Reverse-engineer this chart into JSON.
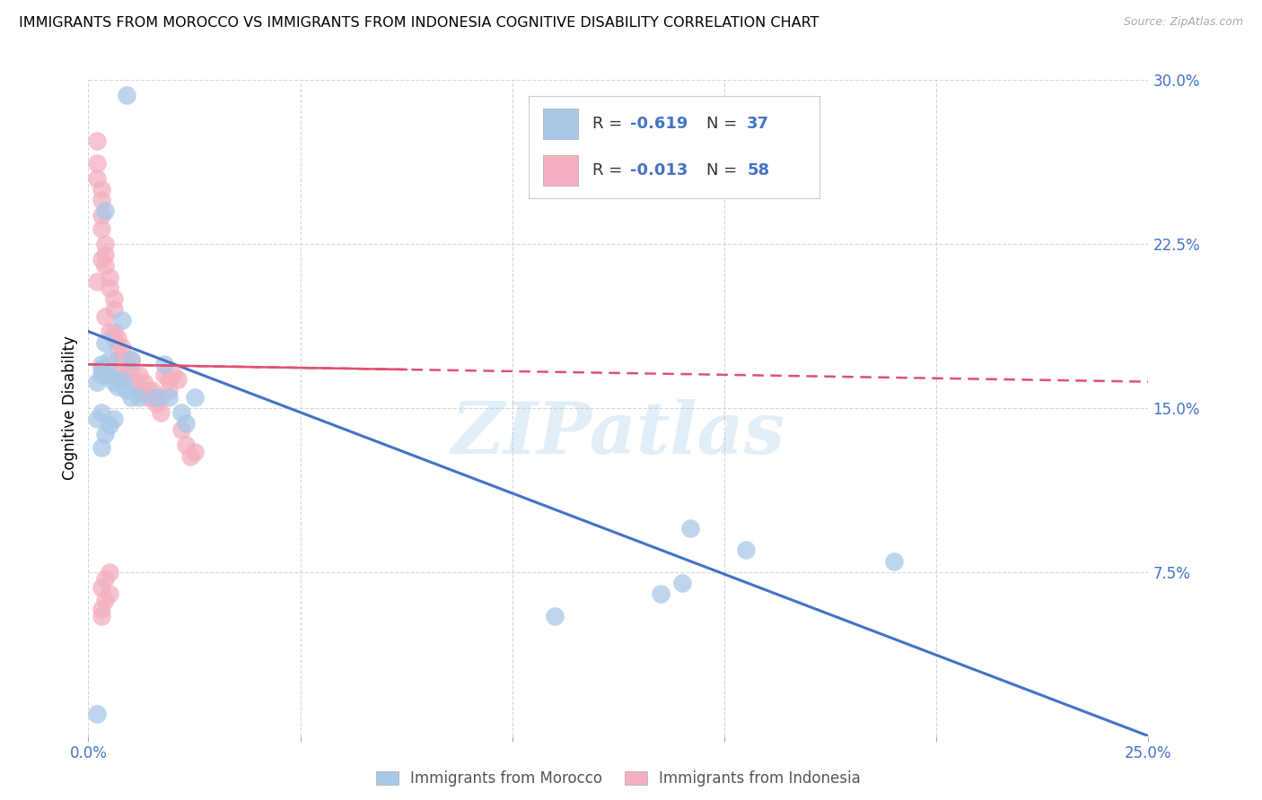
{
  "title": "IMMIGRANTS FROM MOROCCO VS IMMIGRANTS FROM INDONESIA COGNITIVE DISABILITY CORRELATION CHART",
  "source": "Source: ZipAtlas.com",
  "ylabel_label": "Cognitive Disability",
  "xlim": [
    0.0,
    0.25
  ],
  "ylim": [
    0.0,
    0.3
  ],
  "xtick_vals": [
    0.0,
    0.05,
    0.1,
    0.15,
    0.2,
    0.25
  ],
  "ytick_vals": [
    0.0,
    0.075,
    0.15,
    0.225,
    0.3
  ],
  "ytick_labels": [
    "",
    "7.5%",
    "15.0%",
    "22.5%",
    "30.0%"
  ],
  "xtick_labels": [
    "0.0%",
    "",
    "",
    "",
    "",
    "25.0%"
  ],
  "morocco_color": "#a8c8e8",
  "indonesia_color": "#f4b0c0",
  "morocco_line_color": "#4472c4",
  "indonesia_line_color": "#e05070",
  "morocco_R": -0.619,
  "morocco_N": 37,
  "indonesia_R": -0.013,
  "indonesia_N": 58,
  "watermark": "ZIPatlas",
  "morocco_scatter_x": [
    0.009,
    0.003,
    0.004,
    0.005,
    0.004,
    0.002,
    0.003,
    0.003,
    0.004,
    0.005,
    0.006,
    0.007,
    0.008,
    0.009,
    0.01,
    0.012,
    0.01,
    0.008,
    0.006,
    0.005,
    0.004,
    0.003,
    0.002,
    0.003,
    0.018,
    0.022,
    0.019,
    0.016,
    0.025,
    0.023,
    0.14,
    0.135,
    0.19,
    0.155,
    0.142,
    0.11,
    0.002
  ],
  "morocco_scatter_y": [
    0.293,
    0.17,
    0.18,
    0.172,
    0.24,
    0.162,
    0.165,
    0.168,
    0.165,
    0.165,
    0.162,
    0.16,
    0.163,
    0.158,
    0.155,
    0.155,
    0.172,
    0.19,
    0.145,
    0.142,
    0.138,
    0.132,
    0.145,
    0.148,
    0.17,
    0.148,
    0.155,
    0.155,
    0.155,
    0.143,
    0.07,
    0.065,
    0.08,
    0.085,
    0.095,
    0.055,
    0.01
  ],
  "indonesia_scatter_x": [
    0.002,
    0.002,
    0.002,
    0.002,
    0.003,
    0.003,
    0.003,
    0.003,
    0.003,
    0.004,
    0.004,
    0.004,
    0.004,
    0.005,
    0.005,
    0.005,
    0.006,
    0.006,
    0.006,
    0.006,
    0.007,
    0.007,
    0.007,
    0.007,
    0.008,
    0.008,
    0.009,
    0.009,
    0.01,
    0.01,
    0.011,
    0.012,
    0.012,
    0.013,
    0.014,
    0.014,
    0.015,
    0.015,
    0.016,
    0.016,
    0.017,
    0.017,
    0.018,
    0.019,
    0.019,
    0.02,
    0.021,
    0.022,
    0.023,
    0.024,
    0.025,
    0.003,
    0.004,
    0.003,
    0.005,
    0.004,
    0.005,
    0.003
  ],
  "indonesia_scatter_y": [
    0.272,
    0.262,
    0.255,
    0.208,
    0.25,
    0.245,
    0.238,
    0.218,
    0.232,
    0.225,
    0.22,
    0.215,
    0.192,
    0.21,
    0.205,
    0.185,
    0.2,
    0.195,
    0.185,
    0.182,
    0.182,
    0.178,
    0.172,
    0.165,
    0.178,
    0.172,
    0.172,
    0.165,
    0.172,
    0.168,
    0.162,
    0.165,
    0.158,
    0.162,
    0.158,
    0.155,
    0.158,
    0.155,
    0.155,
    0.152,
    0.155,
    0.148,
    0.165,
    0.163,
    0.158,
    0.165,
    0.163,
    0.14,
    0.133,
    0.128,
    0.13,
    0.068,
    0.062,
    0.058,
    0.075,
    0.072,
    0.065,
    0.055
  ],
  "background_color": "#ffffff",
  "grid_color": "#cccccc",
  "title_fontsize": 11.5,
  "axis_label_color": "#4472c4"
}
